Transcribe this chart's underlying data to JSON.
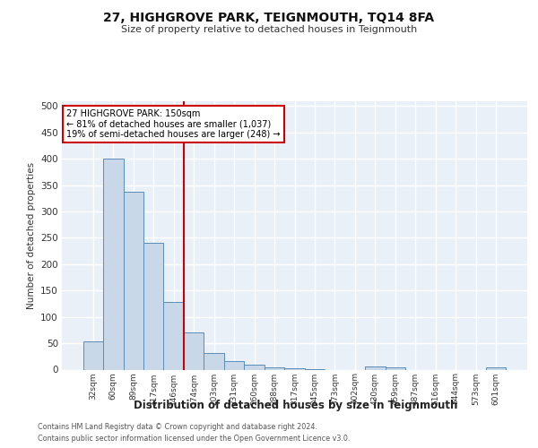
{
  "title": "27, HIGHGROVE PARK, TEIGNMOUTH, TQ14 8FA",
  "subtitle": "Size of property relative to detached houses in Teignmouth",
  "xlabel": "Distribution of detached houses by size in Teignmouth",
  "ylabel": "Number of detached properties",
  "bar_labels": [
    "32sqm",
    "60sqm",
    "89sqm",
    "117sqm",
    "146sqm",
    "174sqm",
    "203sqm",
    "231sqm",
    "260sqm",
    "288sqm",
    "317sqm",
    "345sqm",
    "373sqm",
    "402sqm",
    "430sqm",
    "459sqm",
    "487sqm",
    "516sqm",
    "544sqm",
    "573sqm",
    "601sqm"
  ],
  "bar_values": [
    53,
    400,
    338,
    241,
    128,
    71,
    32,
    17,
    10,
    5,
    2,
    1,
    0,
    0,
    6,
    5,
    0,
    0,
    0,
    0,
    4
  ],
  "bar_color": "#c8d8e8",
  "bar_edge_color": "#5b8db8",
  "vline_x": 4.5,
  "vline_color": "#cc0000",
  "annotation_line1": "27 HIGHGROVE PARK: 150sqm",
  "annotation_line2": "← 81% of detached houses are smaller (1,037)",
  "annotation_line3": "19% of semi-detached houses are larger (248) →",
  "annotation_box_color": "#cc0000",
  "annotation_text_color": "#000000",
  "ylim": [
    0,
    510
  ],
  "yticks": [
    0,
    50,
    100,
    150,
    200,
    250,
    300,
    350,
    400,
    450,
    500
  ],
  "background_color": "#eaf0f8",
  "grid_color": "#ffffff",
  "footer_line1": "Contains HM Land Registry data © Crown copyright and database right 2024.",
  "footer_line2": "Contains public sector information licensed under the Open Government Licence v3.0."
}
